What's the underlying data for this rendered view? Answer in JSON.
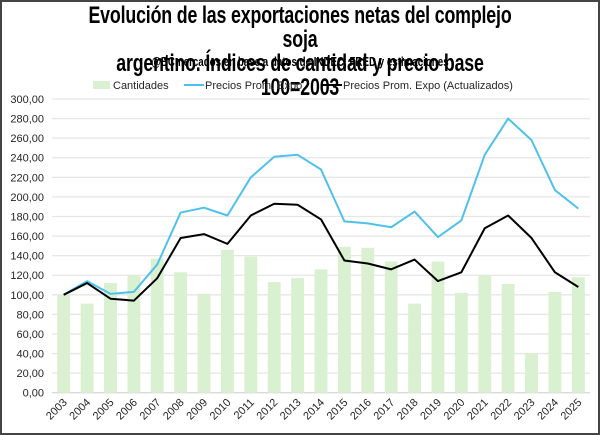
{
  "chart_data": {
    "type": "bar+line",
    "title_line1": "Evolución de las exportaciones netas del complejo soja",
    "title_line2": "argentino. Índices de cantidad y precio base 100=2003",
    "subtitle": "@BCmercados en base a datos de INDEC, FRED y estimaciones",
    "xlabel": "",
    "ylabel": "",
    "ylim": [
      0,
      300
    ],
    "y_ticks": [
      "0,00",
      "20,00",
      "40,00",
      "60,00",
      "80,00",
      "100,00",
      "120,00",
      "140,00",
      "160,00",
      "180,00",
      "200,00",
      "220,00",
      "240,00",
      "260,00",
      "280,00",
      "300,00"
    ],
    "grid": true,
    "legend_position": "top",
    "categories": [
      "2003",
      "2004",
      "2005",
      "2006",
      "2007",
      "2008",
      "2009",
      "2010",
      "2011",
      "2012",
      "2013",
      "2014",
      "2015",
      "2016",
      "2017",
      "2018",
      "2019",
      "2020",
      "2021",
      "2022",
      "2023",
      "2024",
      "2025"
    ],
    "series": [
      {
        "name": "Cantidades",
        "kind": "bar",
        "color": "#d9f1d0",
        "values": [
          100,
          91,
          112,
          120,
          137,
          123,
          101,
          146,
          139,
          113,
          117,
          126,
          149,
          148,
          134,
          91,
          134,
          102,
          120,
          111,
          40,
          103,
          118
        ]
      },
      {
        "name": "Precios Prom. Expo",
        "kind": "line",
        "color": "#4fc1ec",
        "values": [
          100,
          114,
          101,
          103,
          131,
          184,
          189,
          181,
          220,
          241,
          243,
          228,
          175,
          173,
          169,
          185,
          159,
          176,
          243,
          280,
          258,
          207,
          188
        ]
      },
      {
        "name": "Precios Prom. Expo (Actualizados)",
        "kind": "line",
        "color": "#000000",
        "values": [
          100,
          112,
          96,
          94,
          117,
          158,
          162,
          152,
          181,
          193,
          192,
          177,
          135,
          132,
          126,
          136,
          114,
          123,
          168,
          181,
          158,
          123,
          108
        ]
      }
    ]
  }
}
